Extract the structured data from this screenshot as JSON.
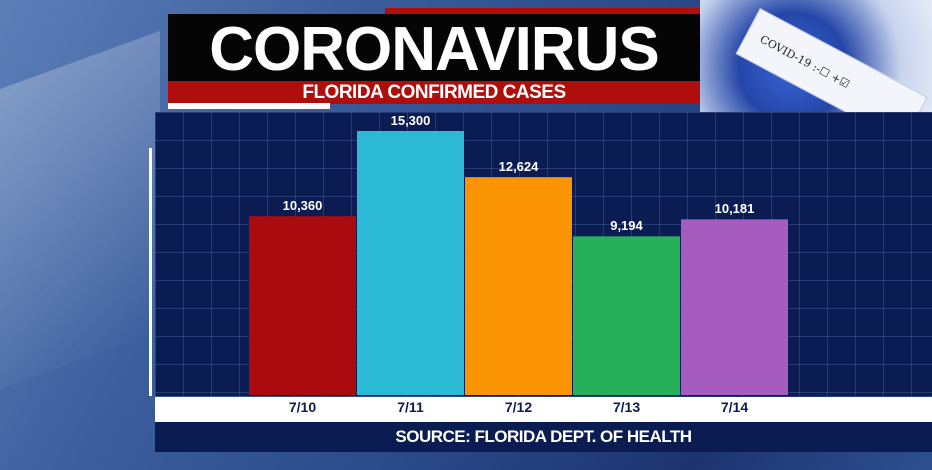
{
  "header": {
    "title": "CORONAVIRUS",
    "subtitle": "FLORIDA CONFIRMED CASES",
    "photo_label": "COVID-19 :-☐ +☑"
  },
  "chart_data": {
    "type": "bar",
    "title": "FLORIDA CONFIRMED CASES",
    "categories": [
      "7/10",
      "7/11",
      "7/12",
      "7/13",
      "7/14"
    ],
    "values": [
      10360,
      15300,
      12624,
      9194,
      10181
    ],
    "value_labels": [
      "10,360",
      "15,300",
      "12,624",
      "9,194",
      "10,181"
    ],
    "colors": [
      "#ab0a0f",
      "#2bb9d6",
      "#fb9403",
      "#27b05c",
      "#a65bbe"
    ],
    "xlabel": "",
    "ylabel": "",
    "ylim": [
      0,
      16400
    ],
    "grid": true,
    "legend": "none"
  },
  "footer": {
    "source": "SOURCE: FLORIDA DEPT. OF HEALTH"
  }
}
